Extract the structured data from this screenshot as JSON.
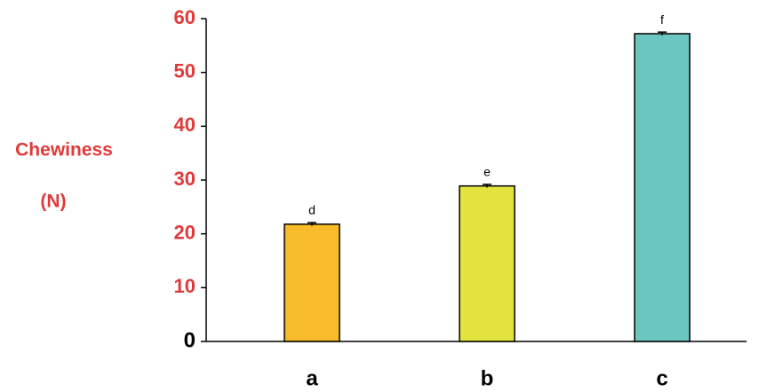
{
  "chart_data": {
    "type": "bar",
    "ylabel": [
      "Chewiness",
      "(N)"
    ],
    "categories": [
      "a",
      "b",
      "c"
    ],
    "values": [
      21.8,
      28.9,
      57.2
    ],
    "errors": [
      0.3,
      0.3,
      0.3
    ],
    "annotations": [
      "d",
      "e",
      "f"
    ],
    "colors": [
      "#f8bb2a",
      "#e3e33e",
      "#6cc6c0"
    ],
    "ylim": [
      0,
      60
    ],
    "yticks": [
      0,
      10,
      20,
      30,
      40,
      50,
      60
    ],
    "grid": false
  }
}
